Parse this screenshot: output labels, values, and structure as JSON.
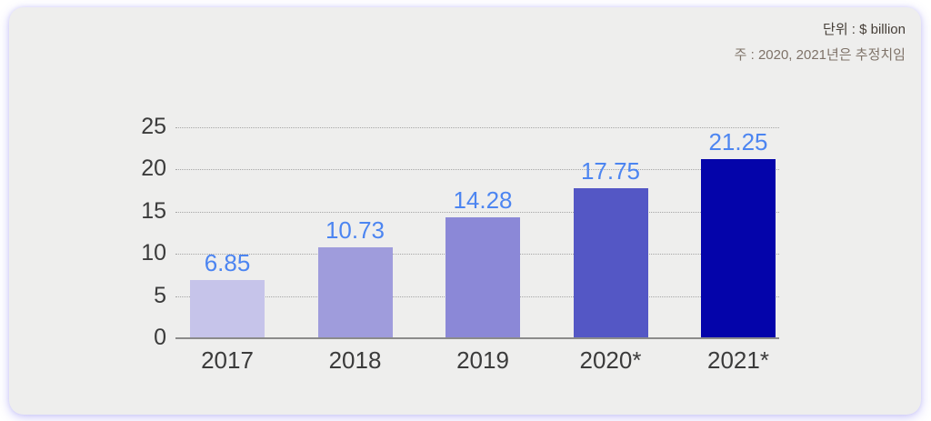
{
  "annotations": {
    "unit": "단위 : $ billion",
    "note": "주 : 2020, 2021년은 추정치임"
  },
  "chart_data": {
    "type": "bar",
    "categories": [
      "2017",
      "2018",
      "2019",
      "2020*",
      "2021*"
    ],
    "values": [
      6.85,
      10.73,
      14.28,
      17.75,
      21.25
    ],
    "value_labels": [
      "6.85",
      "10.73",
      "14.28",
      "17.75",
      "21.25"
    ],
    "title": "",
    "xlabel": "",
    "ylabel": "",
    "ylim": [
      0,
      25
    ],
    "yticks": [
      25,
      20,
      15,
      10,
      5,
      0
    ],
    "grid": "horizontal-dotted",
    "legend": "none",
    "bar_colors": [
      "#c6c4ea",
      "#9f9cdc",
      "#8b88d7",
      "#5457c5",
      "#0404aa"
    ],
    "value_label_color": "#4c85f1",
    "axis_label_color": "#3b3b3b",
    "gridline_color": "#a6a6a6",
    "baseline_color": "#8b8b8b",
    "card_background": "#eeeeed",
    "page_background": "#ffffff"
  }
}
